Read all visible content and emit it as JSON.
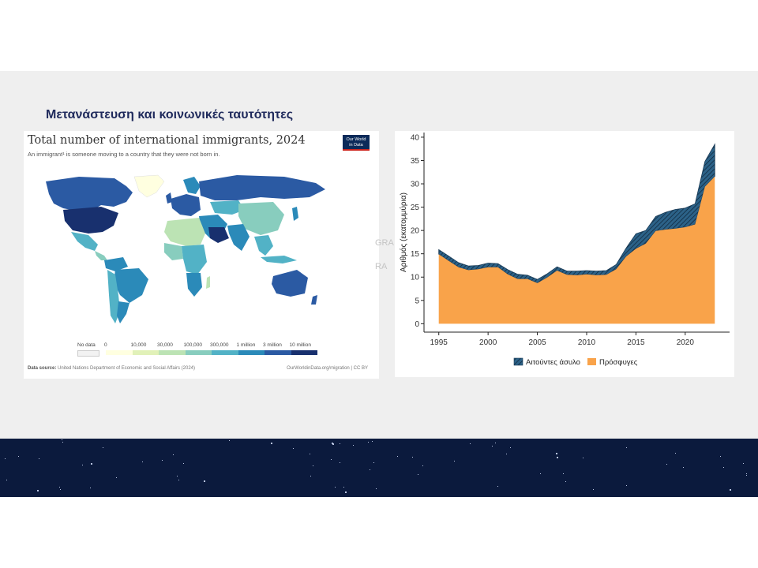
{
  "slide": {
    "title": "Μετανάστευση και κοινωνικές ταυτότητες"
  },
  "map_panel": {
    "title": "Total number of international immigrants, 2024",
    "subtitle": "An immigrant¹ is someone moving to a country that they were not born in.",
    "logo_line1": "Our World",
    "logo_line2": "in Data",
    "source_label": "Data source:",
    "source_text": "United Nations Department of Economic and Social Affairs (2024)",
    "url": "OurWorldinData.org/migration | CC BY",
    "legend": {
      "labels": [
        "No data",
        "0",
        "10,000",
        "30,000",
        "100,000",
        "300,000",
        "1 million",
        "3 million",
        "10 million"
      ],
      "colors": [
        "#f2f2f2",
        "#ffffe0",
        "#e1f1b8",
        "#bce3b4",
        "#88cdbe",
        "#52b2c6",
        "#2b8ab9",
        "#2b5aa3",
        "#18306e"
      ]
    }
  },
  "faint": {
    "t1": "GRA",
    "t2": "RA"
  },
  "chart_data": {
    "type": "area",
    "stacked": true,
    "x": [
      1995,
      1996,
      1997,
      1998,
      1999,
      2000,
      2001,
      2002,
      2003,
      2004,
      2005,
      2006,
      2007,
      2008,
      2009,
      2010,
      2011,
      2012,
      2013,
      2014,
      2015,
      2016,
      2017,
      2018,
      2019,
      2020,
      2021,
      2022,
      2023
    ],
    "series": [
      {
        "name": "Πρόσφυγες",
        "values": [
          14.9,
          13.5,
          12.1,
          11.5,
          11.7,
          12.1,
          12.1,
          10.6,
          9.6,
          9.6,
          8.7,
          9.9,
          11.4,
          10.5,
          10.4,
          10.6,
          10.4,
          10.5,
          11.7,
          14.4,
          16.1,
          17.2,
          19.9,
          20.2,
          20.4,
          20.7,
          21.3,
          29.4,
          31.6
        ]
      },
      {
        "name": "Αιτούντες άσυλο",
        "values": [
          1.0,
          1.0,
          1.0,
          0.9,
          0.8,
          0.9,
          0.8,
          1.0,
          1.0,
          0.8,
          0.8,
          0.8,
          0.8,
          0.8,
          0.9,
          0.8,
          0.9,
          0.9,
          1.0,
          1.8,
          3.2,
          2.8,
          3.1,
          3.7,
          4.1,
          4.1,
          4.4,
          5.4,
          6.9
        ]
      }
    ],
    "xticks": [
      1995,
      2000,
      2005,
      2010,
      2015,
      2020
    ],
    "yticks": [
      0,
      5,
      10,
      15,
      20,
      25,
      30,
      35,
      40
    ],
    "xlim": [
      1993.5,
      2024.5
    ],
    "ylim": [
      -1.8,
      41
    ],
    "ylabel": "Αριθμός (εκατομμύρια)",
    "xlabel": "",
    "legend_position": "bottom",
    "colors": {
      "Πρόσφυγες": "#f9a34a",
      "Αιτούντες άσυλο": "#2c6288"
    }
  }
}
